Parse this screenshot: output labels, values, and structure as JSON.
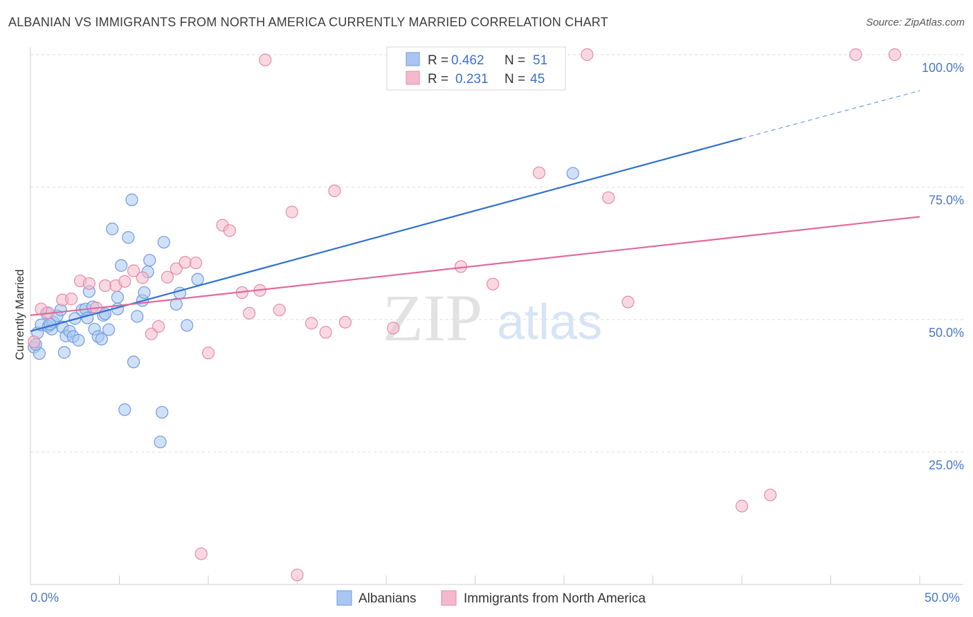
{
  "header": {
    "title": "ALBANIAN VS IMMIGRANTS FROM NORTH AMERICA CURRENTLY MARRIED CORRELATION CHART",
    "source": "Source: ZipAtlas.com"
  },
  "watermark": {
    "zip": "ZIP",
    "atlas": "atlas"
  },
  "legend": {
    "rows": [
      {
        "r_label": "R =",
        "r_value": "0.462",
        "n_label": "N =",
        "n_value": "51",
        "color": "#a9c6f0"
      },
      {
        "r_label": "R =",
        "r_value": "0.231",
        "n_label": "N =",
        "n_value": "45",
        "color": "#f6b8cb"
      }
    ]
  },
  "bottom_legend": {
    "albanians": "Albanians",
    "immigrants": "Immigrants from North America"
  },
  "chart_data": {
    "type": "scatter",
    "title": "ALBANIAN VS IMMIGRANTS FROM NORTH AMERICA CURRENTLY MARRIED CORRELATION CHART",
    "xlabel": "",
    "ylabel": "Currently Married",
    "xlim": [
      0,
      50
    ],
    "ylim": [
      0,
      100
    ],
    "x_tick_labels": [
      "0.0%",
      "50.0%"
    ],
    "y_ticks": [
      25,
      50,
      75,
      100
    ],
    "y_tick_labels": [
      "25.0%",
      "50.0%",
      "75.0%",
      "100.0%"
    ],
    "series": [
      {
        "name": "Albanians",
        "color": "#a9c6f0",
        "stroke": "#6e9be0",
        "line_color": "#2f6fce",
        "trend": {
          "x": [
            0,
            40
          ],
          "y": [
            47.8,
            84.2
          ],
          "dash_to": [
            50,
            93.2
          ]
        },
        "points": [
          [
            0.2,
            44.8
          ],
          [
            0.4,
            47.5
          ],
          [
            0.5,
            43.6
          ],
          [
            0.6,
            49.0
          ],
          [
            0.9,
            51.2
          ],
          [
            1.0,
            48.7
          ],
          [
            1.2,
            48.2
          ],
          [
            1.3,
            49.5
          ],
          [
            1.5,
            50.7
          ],
          [
            1.7,
            51.8
          ],
          [
            1.8,
            48.6
          ],
          [
            1.9,
            43.8
          ],
          [
            2.0,
            46.9
          ],
          [
            2.2,
            47.8
          ],
          [
            2.4,
            46.8
          ],
          [
            2.5,
            50.2
          ],
          [
            2.7,
            46.1
          ],
          [
            2.9,
            51.8
          ],
          [
            3.1,
            52.0
          ],
          [
            3.2,
            50.3
          ],
          [
            3.3,
            55.3
          ],
          [
            3.5,
            52.4
          ],
          [
            3.6,
            48.2
          ],
          [
            3.8,
            46.8
          ],
          [
            4.0,
            46.3
          ],
          [
            4.1,
            50.8
          ],
          [
            4.2,
            51.1
          ],
          [
            4.4,
            48.1
          ],
          [
            4.6,
            67.1
          ],
          [
            4.9,
            52.0
          ],
          [
            4.9,
            54.2
          ],
          [
            5.1,
            60.2
          ],
          [
            5.3,
            33.0
          ],
          [
            5.5,
            65.5
          ],
          [
            5.7,
            72.6
          ],
          [
            5.8,
            42.0
          ],
          [
            6.0,
            50.6
          ],
          [
            6.3,
            53.6
          ],
          [
            6.4,
            55.1
          ],
          [
            6.6,
            59.0
          ],
          [
            6.7,
            61.2
          ],
          [
            7.4,
            32.5
          ],
          [
            7.3,
            26.9
          ],
          [
            7.5,
            64.6
          ],
          [
            8.2,
            52.9
          ],
          [
            8.4,
            55.0
          ],
          [
            8.8,
            48.9
          ],
          [
            9.4,
            57.6
          ],
          [
            30.5,
            77.6
          ],
          [
            0.3,
            45.3
          ],
          [
            1.1,
            49.1
          ]
        ]
      },
      {
        "name": "Immigrants from North America",
        "color": "#f6b8cb",
        "stroke": "#e48aa8",
        "line_color": "#e0699a",
        "trend": {
          "x": [
            0,
            50
          ],
          "y": [
            50.8,
            69.4
          ]
        },
        "points": [
          [
            0.2,
            45.8
          ],
          [
            1.0,
            51.3
          ],
          [
            1.8,
            53.7
          ],
          [
            2.3,
            53.9
          ],
          [
            2.8,
            57.3
          ],
          [
            3.3,
            56.8
          ],
          [
            3.7,
            52.2
          ],
          [
            4.2,
            56.4
          ],
          [
            4.8,
            56.4
          ],
          [
            5.3,
            57.2
          ],
          [
            5.8,
            59.2
          ],
          [
            6.3,
            57.9
          ],
          [
            6.8,
            47.3
          ],
          [
            7.2,
            48.7
          ],
          [
            7.7,
            58.0
          ],
          [
            8.2,
            59.6
          ],
          [
            8.7,
            60.8
          ],
          [
            9.3,
            60.7
          ],
          [
            9.6,
            5.8
          ],
          [
            10.0,
            43.7
          ],
          [
            10.8,
            67.8
          ],
          [
            11.2,
            66.8
          ],
          [
            11.9,
            55.1
          ],
          [
            12.3,
            51.2
          ],
          [
            12.9,
            55.5
          ],
          [
            13.2,
            99.0
          ],
          [
            14.0,
            51.8
          ],
          [
            14.7,
            70.3
          ],
          [
            15.0,
            1.8
          ],
          [
            15.8,
            49.3
          ],
          [
            16.6,
            47.6
          ],
          [
            17.1,
            74.3
          ],
          [
            17.7,
            49.5
          ],
          [
            20.4,
            48.4
          ],
          [
            24.2,
            60.0
          ],
          [
            26.0,
            56.7
          ],
          [
            28.6,
            77.7
          ],
          [
            31.3,
            100.0
          ],
          [
            32.5,
            73.0
          ],
          [
            33.6,
            53.3
          ],
          [
            40.0,
            14.8
          ],
          [
            41.6,
            16.9
          ],
          [
            46.4,
            100.0
          ],
          [
            48.6,
            100.0
          ],
          [
            0.6,
            52.0
          ]
        ]
      }
    ]
  }
}
